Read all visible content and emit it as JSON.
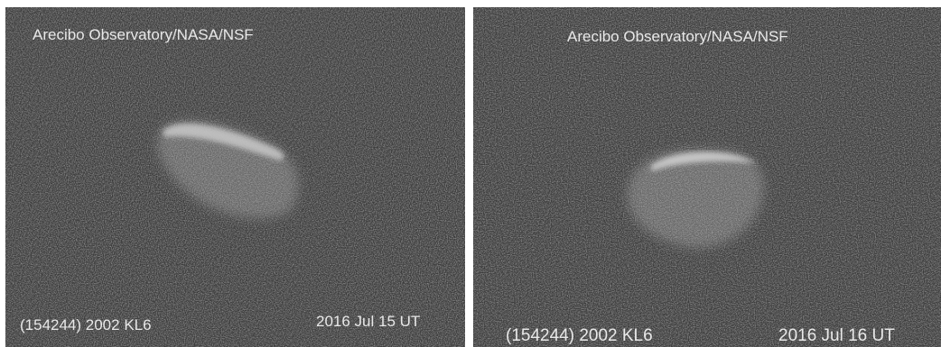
{
  "panels": [
    {
      "credit": "Arecibo Observatory/NASA/NSF",
      "object": "(154244) 2002 KL6",
      "date": "2016 Jul 15 UT"
    },
    {
      "credit": "Arecibo Observatory/NASA/NSF",
      "object": "(154244) 2002 KL6",
      "date": "2016 Jul 16 UT"
    }
  ]
}
